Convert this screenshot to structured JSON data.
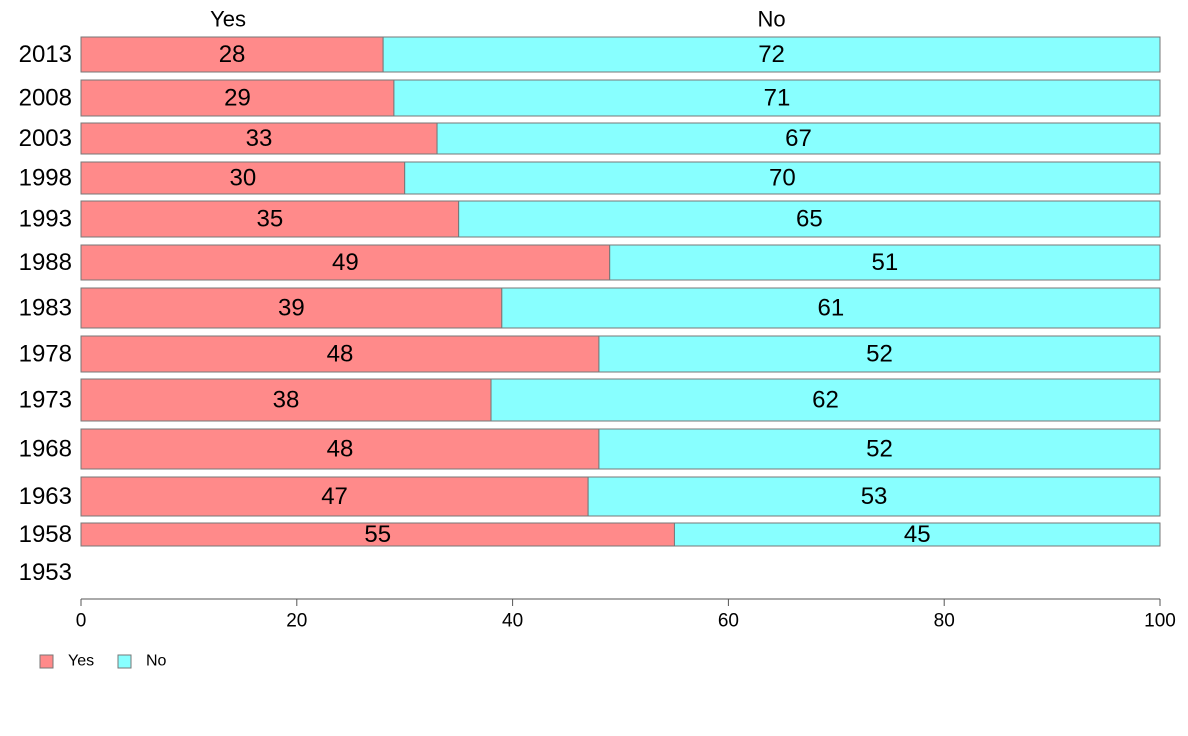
{
  "chart_data": {
    "type": "bar",
    "orientation": "horizontal",
    "stacked": true,
    "categories": [
      "2013",
      "2008",
      "2003",
      "1998",
      "1993",
      "1988",
      "1983",
      "1978",
      "1973",
      "1968",
      "1963",
      "1958",
      "1953"
    ],
    "series": [
      {
        "name": "Yes",
        "color": "#ff8a8a",
        "values": [
          28,
          29,
          33,
          30,
          35,
          49,
          39,
          48,
          38,
          48,
          47,
          55,
          null
        ]
      },
      {
        "name": "No",
        "color": "#88ffff",
        "values": [
          72,
          71,
          67,
          70,
          65,
          51,
          61,
          52,
          62,
          52,
          53,
          45,
          null
        ]
      }
    ],
    "xlim": [
      0,
      100
    ],
    "xticks": [
      0,
      20,
      40,
      60,
      80,
      100
    ],
    "grid": false,
    "legend_position": "bottom-left"
  }
}
